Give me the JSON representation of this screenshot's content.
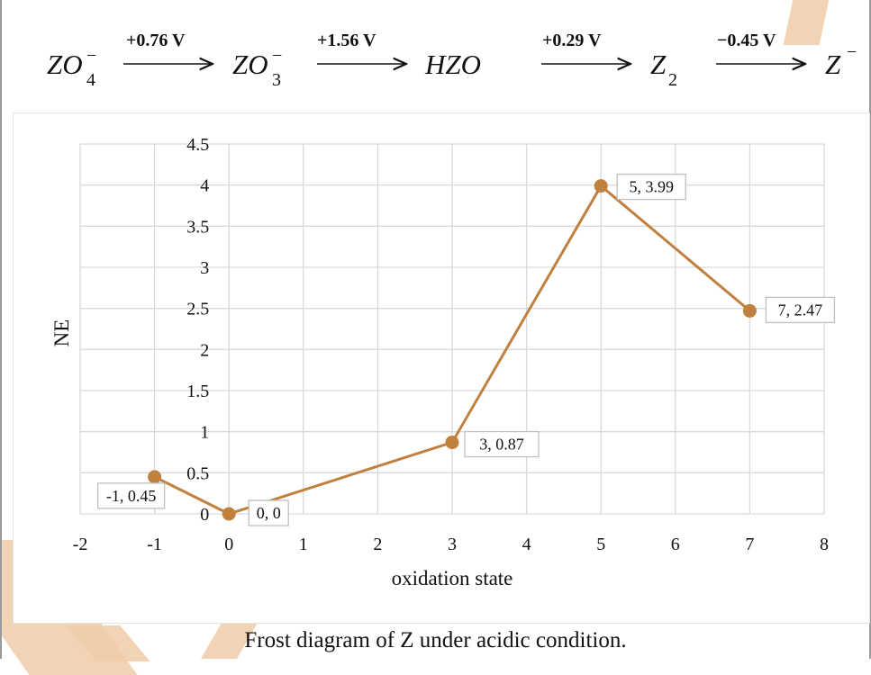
{
  "equation": {
    "species": [
      {
        "base": "ZO",
        "sub": "4",
        "sup": "−"
      },
      {
        "base": "ZO",
        "sub": "3",
        "sup": "−"
      },
      {
        "base": "HZO",
        "sub": "",
        "sup": ""
      },
      {
        "base": "Z",
        "sub": "2",
        "sup": ""
      },
      {
        "base": "Z",
        "sub": "",
        "sup": "−"
      }
    ],
    "potentials": [
      "+0.76 V",
      "+1.56 V",
      "+0.29 V",
      "−0.45 V"
    ]
  },
  "caption": "Frost diagram of Z under acidic condition.",
  "colors": {
    "series": "#c0813f",
    "grid": "#d9d9d9",
    "decoration": "#f0cba9"
  },
  "chart_data": {
    "type": "line",
    "title": "",
    "xlabel": "oxidation state",
    "ylabel": "NE",
    "xlim": [
      -2,
      8
    ],
    "ylim": [
      0,
      4.5
    ],
    "x_ticks": [
      "-2",
      "-1",
      "0",
      "1",
      "2",
      "3",
      "4",
      "5",
      "6",
      "7",
      "8"
    ],
    "y_ticks": [
      "0",
      "0.5",
      "1",
      "1.5",
      "2",
      "2.5",
      "3",
      "3.5",
      "4",
      "4.5"
    ],
    "grid": true,
    "legend": "none",
    "series": [
      {
        "name": "Z",
        "x": [
          -1,
          0,
          3,
          5,
          7
        ],
        "y": [
          0.45,
          0,
          0.87,
          3.99,
          2.47
        ],
        "labels": [
          "-1, 0.45",
          "0, 0",
          "3, 0.87",
          "5, 3.99",
          "7, 2.47"
        ]
      }
    ]
  }
}
